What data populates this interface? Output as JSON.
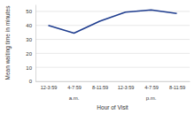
{
  "chart_data": {
    "type": "line",
    "x_label": "Hour of Visit",
    "y_label": "Mean waiting time in minutes",
    "categories": [
      "12-3:59",
      "4-7:59",
      "8-11:59",
      "12-3:59",
      "4-7:59",
      "8-11:59"
    ],
    "category_groups": [
      "a.m.",
      "p.m."
    ],
    "values": [
      40,
      34.5,
      43,
      49.5,
      51,
      48.5
    ],
    "color": "#1f3d8f",
    "ylim": [
      0,
      55
    ],
    "yticks": [
      0,
      10,
      20,
      30,
      40,
      50
    ],
    "grid": true
  }
}
